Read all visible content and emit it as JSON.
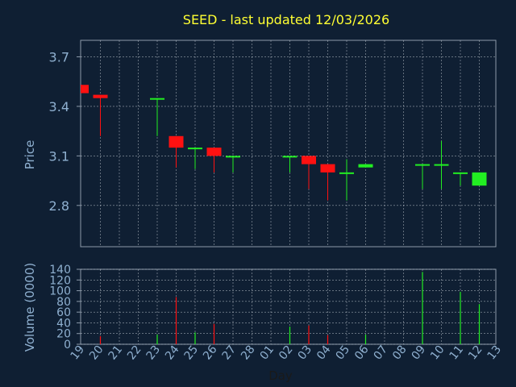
{
  "chart_data": [
    {
      "type": "candlestick",
      "panel": "price",
      "title": "SEED - last updated 12/03/2026",
      "ylabel": "Price",
      "ylim": [
        2.55,
        3.8
      ],
      "yticks": [
        2.8,
        3.1,
        3.4,
        3.7
      ],
      "ytick_labels": [
        "2.8",
        "3.1",
        "3.4",
        "3.7"
      ],
      "grid": true,
      "candles": [
        {
          "day": "19",
          "open": 3.53,
          "high": 3.53,
          "low": 3.48,
          "close": 3.48
        },
        {
          "day": "20",
          "open": 3.47,
          "high": 3.47,
          "low": 3.22,
          "close": 3.45
        },
        {
          "day": "23",
          "open": 3.45,
          "high": 3.45,
          "low": 3.22,
          "close": 3.45
        },
        {
          "day": "24",
          "open": 3.22,
          "high": 3.22,
          "low": 3.03,
          "close": 3.15
        },
        {
          "day": "25",
          "open": 3.15,
          "high": 3.15,
          "low": 3.02,
          "close": 3.15
        },
        {
          "day": "26",
          "open": 3.15,
          "high": 3.15,
          "low": 3.0,
          "close": 3.1
        },
        {
          "day": "27",
          "open": 3.1,
          "high": 3.1,
          "low": 3.0,
          "close": 3.1
        },
        {
          "day": "02",
          "open": 3.1,
          "high": 3.1,
          "low": 3.0,
          "close": 3.1
        },
        {
          "day": "03",
          "open": 3.1,
          "high": 3.1,
          "low": 2.9,
          "close": 3.05
        },
        {
          "day": "04",
          "open": 3.05,
          "high": 3.05,
          "low": 2.83,
          "close": 3.0
        },
        {
          "day": "05",
          "open": 3.0,
          "high": 3.08,
          "low": 2.83,
          "close": 3.0
        },
        {
          "day": "06",
          "open": 3.03,
          "high": 3.05,
          "low": 3.03,
          "close": 3.05
        },
        {
          "day": "09",
          "open": 3.05,
          "high": 3.05,
          "low": 2.9,
          "close": 3.05
        },
        {
          "day": "10",
          "open": 3.05,
          "high": 3.19,
          "low": 2.9,
          "close": 3.05
        },
        {
          "day": "11",
          "open": 3.0,
          "high": 3.0,
          "low": 2.92,
          "close": 3.0
        },
        {
          "day": "12",
          "open": 2.92,
          "high": 3.0,
          "low": 2.92,
          "close": 3.0
        }
      ]
    },
    {
      "type": "bar",
      "panel": "volume",
      "ylabel": "Volume (0000)",
      "ylim": [
        0,
        140
      ],
      "yticks": [
        0,
        20,
        40,
        60,
        80,
        100,
        120,
        140
      ],
      "ytick_labels": [
        "0",
        "20",
        "40",
        "60",
        "80",
        "100",
        "120",
        "140"
      ],
      "xlabel": "Day",
      "x_ticks": [
        "19",
        "20",
        "21",
        "22",
        "23",
        "24",
        "25",
        "26",
        "27",
        "28",
        "01",
        "02",
        "03",
        "04",
        "05",
        "06",
        "07",
        "08",
        "09",
        "10",
        "11",
        "12",
        "13"
      ],
      "grid": true,
      "volumes": [
        {
          "day": "20",
          "value": 15,
          "direction": "down"
        },
        {
          "day": "23",
          "value": 18,
          "direction": "up"
        },
        {
          "day": "24",
          "value": 88,
          "direction": "down"
        },
        {
          "day": "25",
          "value": 22,
          "direction": "up"
        },
        {
          "day": "26",
          "value": 38,
          "direction": "down"
        },
        {
          "day": "02",
          "value": 33,
          "direction": "up"
        },
        {
          "day": "03",
          "value": 35,
          "direction": "down"
        },
        {
          "day": "04",
          "value": 17,
          "direction": "down"
        },
        {
          "day": "06",
          "value": 18,
          "direction": "up"
        },
        {
          "day": "09",
          "value": 135,
          "direction": "up"
        },
        {
          "day": "11",
          "value": 98,
          "direction": "up"
        },
        {
          "day": "12",
          "value": 75,
          "direction": "up"
        }
      ]
    }
  ],
  "colors": {
    "background": "#0f1f33",
    "axis": "#8c9aaa",
    "grid": "#c8d0d8",
    "text": "#8fb0d0",
    "title": "#ffff33",
    "up": "#22ee22",
    "down": "#ff1111"
  }
}
